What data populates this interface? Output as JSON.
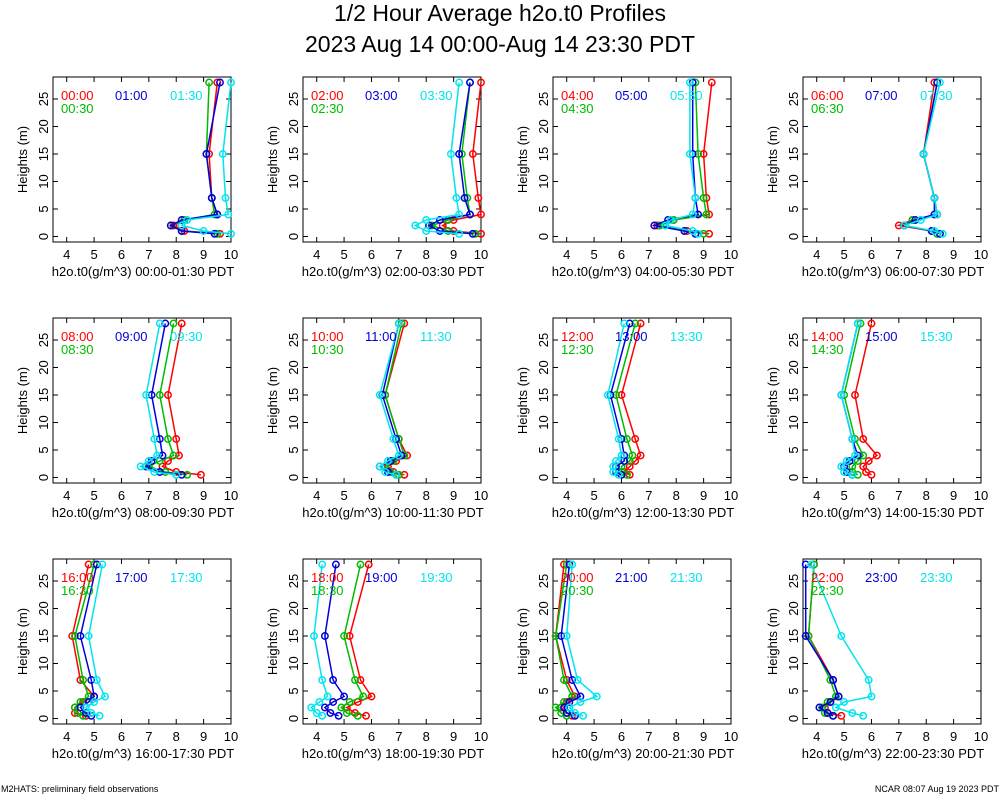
{
  "title": "1/2 Hour Average h2o.t0 Profiles",
  "subtitle": "2023 Aug 14 00:00-Aug 14 23:30 PDT",
  "footer_left": "M2HATS: preliminary field observations",
  "footer_right": "NCAR 08:07 Aug 19 2023 PDT",
  "series_colors": [
    "#ff0000",
    "#00bb00",
    "#0000dd",
    "#00e5ee"
  ],
  "chart_data": [
    {
      "type": "line",
      "ylabel": "Heights (m)",
      "xlabel": "h2o.t0(g/m^3) 00:00-01:30 PDT",
      "xlim": [
        3.5,
        10
      ],
      "ylim": [
        -1,
        29
      ],
      "x_ticks": [
        4,
        5,
        6,
        7,
        8,
        9,
        10
      ],
      "y_ticks": [
        0,
        5,
        10,
        15,
        20,
        25
      ],
      "heights": [
        0.5,
        1,
        2,
        3,
        4,
        7,
        15,
        28
      ],
      "series": [
        {
          "name": "00:00",
          "values": [
            9.6,
            8.3,
            7.9,
            8.3,
            9.5,
            9.3,
            9.2,
            9.5
          ]
        },
        {
          "name": "00:30",
          "values": [
            9.5,
            8.2,
            7.8,
            8.3,
            9.4,
            9.3,
            9.1,
            9.2
          ]
        },
        {
          "name": "01:00",
          "values": [
            9.4,
            8.2,
            7.8,
            8.2,
            9.5,
            9.3,
            9.1,
            9.6
          ]
        },
        {
          "name": "01:30",
          "values": [
            10.0,
            9.0,
            8.2,
            8.4,
            9.9,
            9.8,
            9.7,
            10.0
          ]
        }
      ]
    },
    {
      "type": "line",
      "ylabel": "Heights (m)",
      "xlabel": "h2o.t0(g/m^3) 02:00-03:30 PDT",
      "xlim": [
        3.5,
        10
      ],
      "ylim": [
        -1,
        29
      ],
      "x_ticks": [
        4,
        5,
        6,
        7,
        8,
        9,
        10
      ],
      "y_ticks": [
        0,
        5,
        10,
        15,
        20,
        25
      ],
      "heights": [
        0.5,
        1,
        2,
        3,
        4,
        7,
        15,
        28
      ],
      "series": [
        {
          "name": "02:00",
          "values": [
            10.0,
            9.0,
            8.6,
            9.0,
            10.0,
            9.9,
            9.7,
            10.0
          ]
        },
        {
          "name": "02:30",
          "values": [
            9.8,
            8.8,
            8.2,
            8.8,
            9.6,
            9.5,
            9.3,
            9.6
          ]
        },
        {
          "name": "03:00",
          "values": [
            9.7,
            8.5,
            8.1,
            8.5,
            9.6,
            9.4,
            9.2,
            9.6
          ]
        },
        {
          "name": "03:30",
          "values": [
            9.2,
            8.0,
            7.6,
            8.0,
            9.2,
            9.1,
            8.9,
            9.2
          ]
        }
      ]
    },
    {
      "type": "line",
      "ylabel": "Heights (m)",
      "xlabel": "h2o.t0(g/m^3) 04:00-05:30 PDT",
      "xlim": [
        3.5,
        10
      ],
      "ylim": [
        -1,
        29
      ],
      "x_ticks": [
        4,
        5,
        6,
        7,
        8,
        9,
        10
      ],
      "y_ticks": [
        0,
        5,
        10,
        15,
        20,
        25
      ],
      "heights": [
        0.5,
        1,
        2,
        3,
        4,
        7,
        15,
        28
      ],
      "series": [
        {
          "name": "04:00",
          "values": [
            9.2,
            8.4,
            7.3,
            7.9,
            9.2,
            9.1,
            9.0,
            9.3
          ]
        },
        {
          "name": "04:30",
          "values": [
            9.0,
            8.3,
            7.4,
            7.9,
            9.1,
            9.0,
            8.8,
            8.7
          ]
        },
        {
          "name": "05:00",
          "values": [
            8.7,
            8.3,
            7.2,
            7.7,
            8.8,
            8.7,
            8.6,
            8.6
          ]
        },
        {
          "name": "05:30",
          "values": [
            8.8,
            8.6,
            7.6,
            7.8,
            8.6,
            8.7,
            8.5,
            8.5
          ]
        }
      ]
    },
    {
      "type": "line",
      "ylabel": "Heights (m)",
      "xlabel": "h2o.t0(g/m^3) 06:00-07:30 PDT",
      "xlim": [
        3.5,
        10
      ],
      "ylim": [
        -1,
        29
      ],
      "x_ticks": [
        4,
        5,
        6,
        7,
        8,
        9,
        10
      ],
      "y_ticks": [
        0,
        5,
        10,
        15,
        20,
        25
      ],
      "heights": [
        0.5,
        1,
        2,
        3,
        4,
        7,
        15,
        28
      ],
      "series": [
        {
          "name": "06:00",
          "values": [
            8.5,
            8.2,
            7.0,
            7.5,
            8.4,
            8.3,
            7.9,
            8.3
          ]
        },
        {
          "name": "06:30",
          "values": [
            8.4,
            8.2,
            7.2,
            7.5,
            8.4,
            8.3,
            7.9,
            8.4
          ]
        },
        {
          "name": "07:00",
          "values": [
            8.5,
            8.2,
            7.2,
            7.6,
            8.3,
            8.3,
            7.9,
            8.4
          ]
        },
        {
          "name": "07:30",
          "values": [
            8.6,
            8.3,
            7.2,
            7.8,
            8.4,
            8.3,
            7.9,
            8.5
          ]
        }
      ]
    },
    {
      "type": "line",
      "ylabel": "Heights (m)",
      "xlabel": "h2o.t0(g/m^3) 08:00-09:30 PDT",
      "xlim": [
        3.5,
        10
      ],
      "ylim": [
        -1,
        29
      ],
      "x_ticks": [
        4,
        5,
        6,
        7,
        8,
        9,
        10
      ],
      "y_ticks": [
        0,
        5,
        10,
        15,
        20,
        25
      ],
      "heights": [
        0.5,
        1,
        2,
        3,
        4,
        7,
        15,
        28
      ],
      "series": [
        {
          "name": "08:00",
          "values": [
            8.9,
            8.0,
            7.5,
            7.7,
            8.1,
            8.0,
            7.7,
            8.2
          ]
        },
        {
          "name": "08:30",
          "values": [
            8.4,
            7.6,
            7.0,
            7.4,
            7.9,
            7.7,
            7.4,
            7.9
          ]
        },
        {
          "name": "09:00",
          "values": [
            8.2,
            7.4,
            6.9,
            7.1,
            7.5,
            7.4,
            7.1,
            7.6
          ]
        },
        {
          "name": "09:30",
          "values": [
            8.0,
            7.2,
            6.7,
            7.0,
            7.3,
            7.2,
            6.9,
            7.4
          ]
        }
      ]
    },
    {
      "type": "line",
      "ylabel": "Heights (m)",
      "xlabel": "h2o.t0(g/m^3) 10:00-11:30 PDT",
      "xlim": [
        3.5,
        10
      ],
      "ylim": [
        -1,
        29
      ],
      "x_ticks": [
        4,
        5,
        6,
        7,
        8,
        9,
        10
      ],
      "y_ticks": [
        0,
        5,
        10,
        15,
        20,
        25
      ],
      "heights": [
        0.5,
        1,
        2,
        3,
        4,
        7,
        15,
        28
      ],
      "series": [
        {
          "name": "10:00",
          "values": [
            7.2,
            6.8,
            6.6,
            6.9,
            7.3,
            7.0,
            6.5,
            7.2
          ]
        },
        {
          "name": "10:30",
          "values": [
            7.0,
            6.7,
            6.5,
            6.8,
            7.2,
            7.0,
            6.5,
            7.1
          ]
        },
        {
          "name": "11:00",
          "values": [
            6.9,
            6.6,
            6.3,
            6.7,
            7.1,
            6.9,
            6.4,
            7.0
          ]
        },
        {
          "name": "11:30",
          "values": [
            6.9,
            6.5,
            6.3,
            6.6,
            7.0,
            6.8,
            6.3,
            7.0
          ]
        }
      ]
    },
    {
      "type": "line",
      "ylabel": "Heights (m)",
      "xlabel": "h2o.t0(g/m^3) 12:00-13:30 PDT",
      "xlim": [
        3.5,
        10
      ],
      "ylim": [
        -1,
        29
      ],
      "x_ticks": [
        4,
        5,
        6,
        7,
        8,
        9,
        10
      ],
      "y_ticks": [
        0,
        5,
        10,
        15,
        20,
        25
      ],
      "heights": [
        0.5,
        1,
        2,
        3,
        4,
        7,
        15,
        28
      ],
      "series": [
        {
          "name": "12:00",
          "values": [
            6.3,
            6.1,
            6.3,
            6.5,
            6.7,
            6.5,
            6.0,
            6.7
          ]
        },
        {
          "name": "12:30",
          "values": [
            6.2,
            6.0,
            6.0,
            6.3,
            6.4,
            6.2,
            5.8,
            6.5
          ]
        },
        {
          "name": "13:00",
          "values": [
            6.0,
            5.8,
            5.8,
            6.1,
            6.1,
            6.0,
            5.6,
            6.3
          ]
        },
        {
          "name": "13:30",
          "values": [
            5.9,
            5.7,
            5.7,
            5.8,
            6.0,
            5.9,
            5.5,
            6.1
          ]
        }
      ]
    },
    {
      "type": "line",
      "ylabel": "Heights (m)",
      "xlabel": "h2o.t0(g/m^3) 14:00-15:30 PDT",
      "xlim": [
        3.5,
        10
      ],
      "ylim": [
        -1,
        29
      ],
      "x_ticks": [
        4,
        5,
        6,
        7,
        8,
        9,
        10
      ],
      "y_ticks": [
        0,
        5,
        10,
        15,
        20,
        25
      ],
      "heights": [
        0.5,
        1,
        2,
        3,
        4,
        7,
        15,
        28
      ],
      "series": [
        {
          "name": "14:00",
          "values": [
            6.0,
            5.8,
            5.7,
            5.9,
            6.2,
            5.7,
            5.4,
            6.0
          ]
        },
        {
          "name": "14:30",
          "values": [
            5.5,
            5.3,
            5.3,
            5.5,
            5.7,
            5.4,
            5.0,
            5.6
          ]
        },
        {
          "name": "15:00",
          "values": [
            5.3,
            5.1,
            5.0,
            5.2,
            5.5,
            5.3,
            4.9,
            5.5
          ]
        },
        {
          "name": "15:30",
          "values": [
            5.3,
            5.0,
            4.9,
            5.1,
            5.4,
            5.3,
            4.9,
            5.5
          ]
        }
      ]
    },
    {
      "type": "line",
      "ylabel": "Heights (m)",
      "xlabel": "h2o.t0(g/m^3) 16:00-17:30 PDT",
      "xlim": [
        3.5,
        10
      ],
      "ylim": [
        -1,
        29
      ],
      "x_ticks": [
        4,
        5,
        6,
        7,
        8,
        9,
        10
      ],
      "y_ticks": [
        0,
        5,
        10,
        15,
        20,
        25
      ],
      "heights": [
        0.5,
        1,
        2,
        3,
        4,
        7,
        15,
        28
      ],
      "series": [
        {
          "name": "16:00",
          "values": [
            4.7,
            4.3,
            4.3,
            4.6,
            5.0,
            4.5,
            4.2,
            4.8
          ]
        },
        {
          "name": "16:30",
          "values": [
            4.6,
            4.4,
            4.3,
            4.5,
            4.8,
            4.6,
            4.3,
            5.0
          ]
        },
        {
          "name": "17:00",
          "values": [
            4.9,
            4.7,
            4.5,
            4.8,
            5.0,
            4.9,
            4.5,
            5.1
          ]
        },
        {
          "name": "17:30",
          "values": [
            5.2,
            4.9,
            4.7,
            5.0,
            5.4,
            5.1,
            4.8,
            5.3
          ]
        }
      ]
    },
    {
      "type": "line",
      "ylabel": "Heights (m)",
      "xlabel": "h2o.t0(g/m^3) 18:00-19:30 PDT",
      "xlim": [
        3.5,
        10
      ],
      "ylim": [
        -1,
        29
      ],
      "x_ticks": [
        4,
        5,
        6,
        7,
        8,
        9,
        10
      ],
      "y_ticks": [
        0,
        5,
        10,
        15,
        20,
        25
      ],
      "heights": [
        0.5,
        1,
        2,
        3,
        4,
        7,
        15,
        28
      ],
      "series": [
        {
          "name": "18:00",
          "values": [
            5.8,
            5.4,
            5.1,
            5.5,
            6.0,
            5.6,
            5.2,
            5.9
          ]
        },
        {
          "name": "18:30",
          "values": [
            5.5,
            5.1,
            4.9,
            5.2,
            5.7,
            5.4,
            5.0,
            5.6
          ]
        },
        {
          "name": "19:00",
          "values": [
            4.8,
            4.5,
            4.3,
            4.6,
            5.0,
            4.6,
            4.3,
            4.7
          ]
        },
        {
          "name": "19:30",
          "values": [
            4.2,
            4.0,
            3.8,
            4.1,
            4.4,
            4.2,
            3.9,
            4.2
          ]
        }
      ]
    },
    {
      "type": "line",
      "ylabel": "Heights (m)",
      "xlabel": "h2o.t0(g/m^3) 20:00-21:30 PDT",
      "xlim": [
        3.5,
        10
      ],
      "ylim": [
        -1,
        29
      ],
      "x_ticks": [
        4,
        5,
        6,
        7,
        8,
        9,
        10
      ],
      "y_ticks": [
        0,
        5,
        10,
        15,
        20,
        25
      ],
      "heights": [
        0.5,
        1,
        2,
        3,
        4,
        7,
        15,
        28
      ],
      "series": [
        {
          "name": "20:00",
          "values": [
            4.2,
            4.0,
            3.8,
            4.0,
            4.3,
            4.0,
            3.6,
            3.9
          ]
        },
        {
          "name": "20:30",
          "values": [
            4.0,
            3.8,
            3.6,
            3.9,
            4.2,
            3.9,
            3.6,
            4.0
          ]
        },
        {
          "name": "21:00",
          "values": [
            4.3,
            4.0,
            3.9,
            4.1,
            4.5,
            4.2,
            3.8,
            4.1
          ]
        },
        {
          "name": "21:30",
          "values": [
            4.6,
            4.3,
            4.1,
            4.5,
            5.1,
            4.4,
            4.0,
            4.2
          ]
        }
      ]
    },
    {
      "type": "line",
      "ylabel": "Heights (m)",
      "xlabel": "h2o.t0(g/m^3) 22:00-23:30 PDT",
      "xlim": [
        3.5,
        10
      ],
      "ylim": [
        -1,
        29
      ],
      "x_ticks": [
        4,
        5,
        6,
        7,
        8,
        9,
        10
      ],
      "y_ticks": [
        0,
        5,
        10,
        15,
        20,
        25
      ],
      "heights": [
        0.5,
        1,
        2,
        3,
        4,
        7,
        15,
        28
      ],
      "series": [
        {
          "name": "22:00",
          "values": [
            4.9,
            4.4,
            4.3,
            4.5,
            4.8,
            4.6,
            3.7,
            3.9
          ]
        },
        {
          "name": "22:30",
          "values": [
            4.6,
            4.3,
            4.2,
            4.4,
            4.7,
            4.5,
            3.7,
            3.9
          ]
        },
        {
          "name": "23:00",
          "values": [
            4.6,
            4.4,
            4.1,
            4.5,
            4.8,
            4.6,
            3.6,
            3.6
          ]
        },
        {
          "name": "23:30",
          "values": [
            5.7,
            5.3,
            4.7,
            5.0,
            6.0,
            5.9,
            4.9,
            3.8
          ]
        }
      ]
    }
  ]
}
